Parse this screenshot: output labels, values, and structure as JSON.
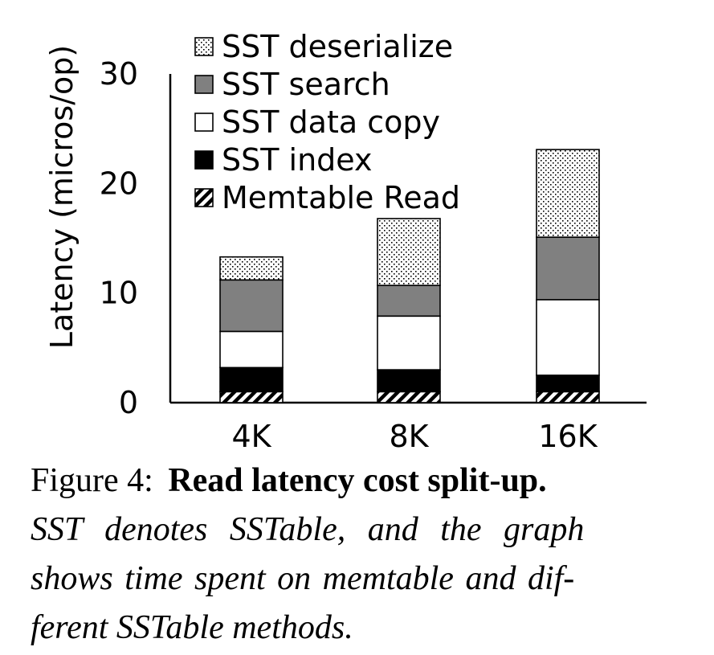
{
  "chart_data": {
    "type": "bar",
    "stacked": true,
    "categories": [
      "4K",
      "8K",
      "16K"
    ],
    "ylabel": "Latency (micros/op)",
    "xlabel": "",
    "ylim": [
      0,
      30
    ],
    "yticks": [
      "0",
      "10",
      "20",
      "30"
    ],
    "grid": false,
    "legend_position": "top-left",
    "series": [
      {
        "name": "Memtable Read",
        "fill": "hatch",
        "values": [
          1.0,
          1.0,
          1.0
        ]
      },
      {
        "name": "SST index",
        "fill": "#000000",
        "values": [
          2.2,
          2.0,
          1.5
        ]
      },
      {
        "name": "SST data copy",
        "fill": "#ffffff",
        "values": [
          3.3,
          4.9,
          6.9
        ]
      },
      {
        "name": "SST search",
        "fill": "#808080",
        "values": [
          4.7,
          2.8,
          5.7
        ]
      },
      {
        "name": "SST deserialize",
        "fill": "dots",
        "values": [
          2.1,
          6.1,
          8.0
        ]
      }
    ],
    "legend_order": [
      "SST deserialize",
      "SST search",
      "SST data copy",
      "SST index",
      "Memtable Read"
    ]
  },
  "caption": {
    "label": "Figure 4:",
    "title": "Read latency cost split-up.",
    "body_lines": [
      "SST denotes SSTable, and the graph",
      "shows time spent on memtable and dif-",
      "ferent SSTable methods."
    ]
  }
}
